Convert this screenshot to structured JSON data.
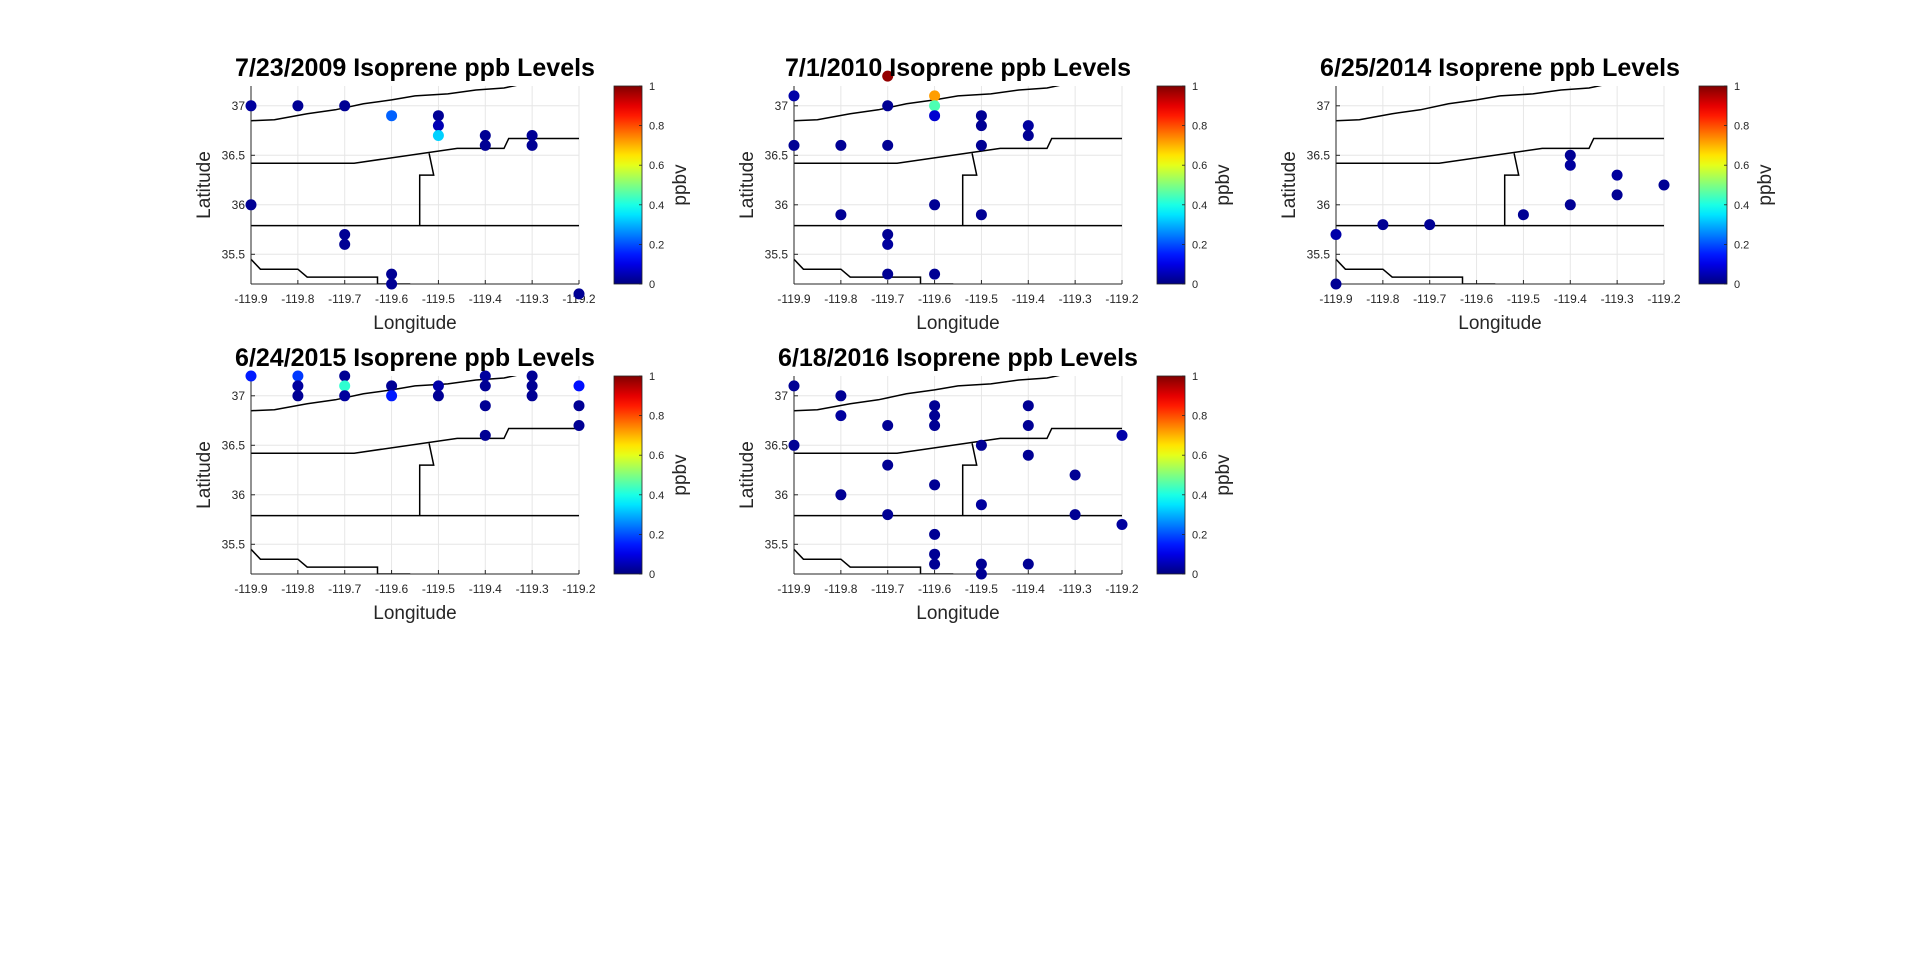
{
  "figure": {
    "background": "#ffffff"
  },
  "chart_data": [
    {
      "type": "scatter",
      "title": "7/23/2009 Isoprene ppb Levels",
      "xlabel": "Longitude",
      "ylabel": "Latitude",
      "colorbar_label": "ppbv",
      "colormap": "jet",
      "xlim": [
        -119.9,
        -119.2
      ],
      "ylim": [
        35.2,
        37.2
      ],
      "clim": [
        0,
        1
      ],
      "xticks": [
        "-119.9",
        "-119.8",
        "-119.7",
        "-119.6",
        "-119.5",
        "-119.4",
        "-119.3",
        "-119.2"
      ],
      "yticks": [
        "35.5",
        "36",
        "36.5",
        "37"
      ],
      "cbticks": [
        "0",
        "0.2",
        "0.4",
        "0.6",
        "0.8",
        "1"
      ],
      "grid": true,
      "points": [
        {
          "lon": -119.9,
          "lat": 37.0,
          "ppbv": 0.03
        },
        {
          "lon": -119.8,
          "lat": 37.0,
          "ppbv": 0.02
        },
        {
          "lon": -119.7,
          "lat": 37.0,
          "ppbv": 0.02
        },
        {
          "lon": -119.6,
          "lat": 36.9,
          "ppbv": 0.22
        },
        {
          "lon": -119.5,
          "lat": 36.9,
          "ppbv": 0.02
        },
        {
          "lon": -119.5,
          "lat": 36.8,
          "ppbv": 0.05
        },
        {
          "lon": -119.5,
          "lat": 36.7,
          "ppbv": 0.33
        },
        {
          "lon": -119.4,
          "lat": 36.7,
          "ppbv": 0.02
        },
        {
          "lon": -119.4,
          "lat": 36.6,
          "ppbv": 0.02
        },
        {
          "lon": -119.3,
          "lat": 36.7,
          "ppbv": 0.02
        },
        {
          "lon": -119.3,
          "lat": 36.6,
          "ppbv": 0.02
        },
        {
          "lon": -119.9,
          "lat": 36.0,
          "ppbv": 0.02
        },
        {
          "lon": -119.7,
          "lat": 35.7,
          "ppbv": 0.02
        },
        {
          "lon": -119.7,
          "lat": 35.6,
          "ppbv": 0.02
        },
        {
          "lon": -119.6,
          "lat": 35.3,
          "ppbv": 0.02
        },
        {
          "lon": -119.6,
          "lat": 35.2,
          "ppbv": 0.02
        },
        {
          "lon": -119.2,
          "lat": 35.1,
          "ppbv": 0.02
        }
      ]
    },
    {
      "type": "scatter",
      "title": "7/1/2010 Isoprene ppb Levels",
      "xlabel": "Longitude",
      "ylabel": "Latitude",
      "colorbar_label": "ppbv",
      "colormap": "jet",
      "xlim": [
        -119.9,
        -119.2
      ],
      "ylim": [
        35.2,
        37.2
      ],
      "clim": [
        0,
        1
      ],
      "xticks": [
        "-119.9",
        "-119.8",
        "-119.7",
        "-119.6",
        "-119.5",
        "-119.4",
        "-119.3",
        "-119.2"
      ],
      "yticks": [
        "35.5",
        "36",
        "36.5",
        "37"
      ],
      "cbticks": [
        "0",
        "0.2",
        "0.4",
        "0.6",
        "0.8",
        "1"
      ],
      "grid": true,
      "points": [
        {
          "lon": -119.7,
          "lat": 37.3,
          "ppbv": 0.98
        },
        {
          "lon": -119.9,
          "lat": 37.1,
          "ppbv": 0.04
        },
        {
          "lon": -119.7,
          "lat": 37.0,
          "ppbv": 0.02
        },
        {
          "lon": -119.6,
          "lat": 37.1,
          "ppbv": 0.72
        },
        {
          "lon": -119.6,
          "lat": 37.0,
          "ppbv": 0.45
        },
        {
          "lon": -119.6,
          "lat": 36.9,
          "ppbv": 0.08
        },
        {
          "lon": -119.5,
          "lat": 36.9,
          "ppbv": 0.02
        },
        {
          "lon": -119.5,
          "lat": 36.8,
          "ppbv": 0.02
        },
        {
          "lon": -119.4,
          "lat": 36.8,
          "ppbv": 0.03
        },
        {
          "lon": -119.4,
          "lat": 36.7,
          "ppbv": 0.02
        },
        {
          "lon": -119.9,
          "lat": 36.6,
          "ppbv": 0.02
        },
        {
          "lon": -119.8,
          "lat": 36.6,
          "ppbv": 0.02
        },
        {
          "lon": -119.7,
          "lat": 36.6,
          "ppbv": 0.02
        },
        {
          "lon": -119.5,
          "lat": 36.6,
          "ppbv": 0.02
        },
        {
          "lon": -119.6,
          "lat": 36.0,
          "ppbv": 0.02
        },
        {
          "lon": -119.8,
          "lat": 35.9,
          "ppbv": 0.02
        },
        {
          "lon": -119.5,
          "lat": 35.9,
          "ppbv": 0.02
        },
        {
          "lon": -119.7,
          "lat": 35.7,
          "ppbv": 0.02
        },
        {
          "lon": -119.7,
          "lat": 35.6,
          "ppbv": 0.03
        },
        {
          "lon": -119.7,
          "lat": 35.3,
          "ppbv": 0.02
        },
        {
          "lon": -119.6,
          "lat": 35.3,
          "ppbv": 0.02
        }
      ]
    },
    {
      "type": "scatter",
      "title": "6/25/2014 Isoprene ppb Levels",
      "xlabel": "Longitude",
      "ylabel": "Latitude",
      "colorbar_label": "ppbv",
      "colormap": "jet",
      "xlim": [
        -119.9,
        -119.2
      ],
      "ylim": [
        35.2,
        37.2
      ],
      "clim": [
        0,
        1
      ],
      "xticks": [
        "-119.9",
        "-119.8",
        "-119.7",
        "-119.6",
        "-119.5",
        "-119.4",
        "-119.3",
        "-119.2"
      ],
      "yticks": [
        "35.5",
        "36",
        "36.5",
        "37"
      ],
      "cbticks": [
        "0",
        "0.2",
        "0.4",
        "0.6",
        "0.8",
        "1"
      ],
      "grid": true,
      "points": [
        {
          "lon": -119.4,
          "lat": 36.5,
          "ppbv": 0.02
        },
        {
          "lon": -119.4,
          "lat": 36.4,
          "ppbv": 0.03
        },
        {
          "lon": -119.3,
          "lat": 36.3,
          "ppbv": 0.03
        },
        {
          "lon": -119.2,
          "lat": 36.2,
          "ppbv": 0.02
        },
        {
          "lon": -119.3,
          "lat": 36.1,
          "ppbv": 0.02
        },
        {
          "lon": -119.4,
          "lat": 36.0,
          "ppbv": 0.02
        },
        {
          "lon": -119.5,
          "lat": 35.9,
          "ppbv": 0.02
        },
        {
          "lon": -119.8,
          "lat": 35.8,
          "ppbv": 0.02
        },
        {
          "lon": -119.7,
          "lat": 35.8,
          "ppbv": 0.02
        },
        {
          "lon": -119.9,
          "lat": 35.7,
          "ppbv": 0.04
        },
        {
          "lon": -119.9,
          "lat": 35.2,
          "ppbv": 0.02
        }
      ]
    },
    {
      "type": "scatter",
      "title": "6/24/2015 Isoprene ppb Levels",
      "xlabel": "Longitude",
      "ylabel": "Latitude",
      "colorbar_label": "ppbv",
      "colormap": "jet",
      "xlim": [
        -119.9,
        -119.2
      ],
      "ylim": [
        35.2,
        37.2
      ],
      "clim": [
        0,
        1
      ],
      "xticks": [
        "-119.9",
        "-119.8",
        "-119.7",
        "-119.6",
        "-119.5",
        "-119.4",
        "-119.3",
        "-119.2"
      ],
      "yticks": [
        "35.5",
        "36",
        "36.5",
        "37"
      ],
      "cbticks": [
        "0",
        "0.2",
        "0.4",
        "0.6",
        "0.8",
        "1"
      ],
      "grid": true,
      "points": [
        {
          "lon": -119.9,
          "lat": 37.2,
          "ppbv": 0.15
        },
        {
          "lon": -119.8,
          "lat": 37.2,
          "ppbv": 0.18
        },
        {
          "lon": -119.8,
          "lat": 37.1,
          "ppbv": 0.03
        },
        {
          "lon": -119.8,
          "lat": 37.0,
          "ppbv": 0.02
        },
        {
          "lon": -119.7,
          "lat": 37.2,
          "ppbv": 0.02
        },
        {
          "lon": -119.7,
          "lat": 37.1,
          "ppbv": 0.42
        },
        {
          "lon": -119.7,
          "lat": 37.0,
          "ppbv": 0.03
        },
        {
          "lon": -119.6,
          "lat": 37.1,
          "ppbv": 0.02
        },
        {
          "lon": -119.6,
          "lat": 37.0,
          "ppbv": 0.15
        },
        {
          "lon": -119.5,
          "lat": 37.1,
          "ppbv": 0.04
        },
        {
          "lon": -119.5,
          "lat": 37.0,
          "ppbv": 0.02
        },
        {
          "lon": -119.4,
          "lat": 37.2,
          "ppbv": 0.03
        },
        {
          "lon": -119.4,
          "lat": 37.1,
          "ppbv": 0.02
        },
        {
          "lon": -119.4,
          "lat": 36.9,
          "ppbv": 0.02
        },
        {
          "lon": -119.4,
          "lat": 36.6,
          "ppbv": 0.02
        },
        {
          "lon": -119.3,
          "lat": 37.2,
          "ppbv": 0.02
        },
        {
          "lon": -119.3,
          "lat": 37.1,
          "ppbv": 0.02
        },
        {
          "lon": -119.3,
          "lat": 37.0,
          "ppbv": 0.02
        },
        {
          "lon": -119.2,
          "lat": 37.1,
          "ppbv": 0.14
        },
        {
          "lon": -119.2,
          "lat": 36.9,
          "ppbv": 0.02
        },
        {
          "lon": -119.2,
          "lat": 36.7,
          "ppbv": 0.02
        }
      ]
    },
    {
      "type": "scatter",
      "title": "6/18/2016 Isoprene ppb Levels",
      "xlabel": "Longitude",
      "ylabel": "Latitude",
      "colorbar_label": "ppbv",
      "colormap": "jet",
      "xlim": [
        -119.9,
        -119.2
      ],
      "ylim": [
        35.2,
        37.2
      ],
      "clim": [
        0,
        1
      ],
      "xticks": [
        "-119.9",
        "-119.8",
        "-119.7",
        "-119.6",
        "-119.5",
        "-119.4",
        "-119.3",
        "-119.2"
      ],
      "yticks": [
        "35.5",
        "36",
        "36.5",
        "37"
      ],
      "cbticks": [
        "0",
        "0.2",
        "0.4",
        "0.6",
        "0.8",
        "1"
      ],
      "grid": true,
      "points": [
        {
          "lon": -119.9,
          "lat": 37.1,
          "ppbv": 0.02
        },
        {
          "lon": -119.8,
          "lat": 37.0,
          "ppbv": 0.02
        },
        {
          "lon": -119.8,
          "lat": 36.8,
          "ppbv": 0.03
        },
        {
          "lon": -119.7,
          "lat": 36.7,
          "ppbv": 0.02
        },
        {
          "lon": -119.6,
          "lat": 36.9,
          "ppbv": 0.02
        },
        {
          "lon": -119.6,
          "lat": 36.8,
          "ppbv": 0.02
        },
        {
          "lon": -119.6,
          "lat": 36.7,
          "ppbv": 0.02
        },
        {
          "lon": -119.4,
          "lat": 36.9,
          "ppbv": 0.02
        },
        {
          "lon": -119.4,
          "lat": 36.7,
          "ppbv": 0.02
        },
        {
          "lon": -119.9,
          "lat": 36.5,
          "ppbv": 0.02
        },
        {
          "lon": -119.5,
          "lat": 36.5,
          "ppbv": 0.02
        },
        {
          "lon": -119.4,
          "lat": 36.4,
          "ppbv": 0.02
        },
        {
          "lon": -119.2,
          "lat": 36.6,
          "ppbv": 0.04
        },
        {
          "lon": -119.7,
          "lat": 36.3,
          "ppbv": 0.02
        },
        {
          "lon": -119.3,
          "lat": 36.2,
          "ppbv": 0.02
        },
        {
          "lon": -119.6,
          "lat": 36.1,
          "ppbv": 0.02
        },
        {
          "lon": -119.8,
          "lat": 36.0,
          "ppbv": 0.02
        },
        {
          "lon": -119.5,
          "lat": 35.9,
          "ppbv": 0.03
        },
        {
          "lon": -119.7,
          "lat": 35.8,
          "ppbv": 0.02
        },
        {
          "lon": -119.3,
          "lat": 35.8,
          "ppbv": 0.02
        },
        {
          "lon": -119.2,
          "lat": 35.7,
          "ppbv": 0.03
        },
        {
          "lon": -119.6,
          "lat": 35.6,
          "ppbv": 0.02
        },
        {
          "lon": -119.6,
          "lat": 35.4,
          "ppbv": 0.02
        },
        {
          "lon": -119.6,
          "lat": 35.3,
          "ppbv": 0.02
        },
        {
          "lon": -119.5,
          "lat": 35.3,
          "ppbv": 0.02
        },
        {
          "lon": -119.5,
          "lat": 35.2,
          "ppbv": 0.02
        },
        {
          "lon": -119.4,
          "lat": 35.3,
          "ppbv": 0.02
        }
      ]
    }
  ]
}
